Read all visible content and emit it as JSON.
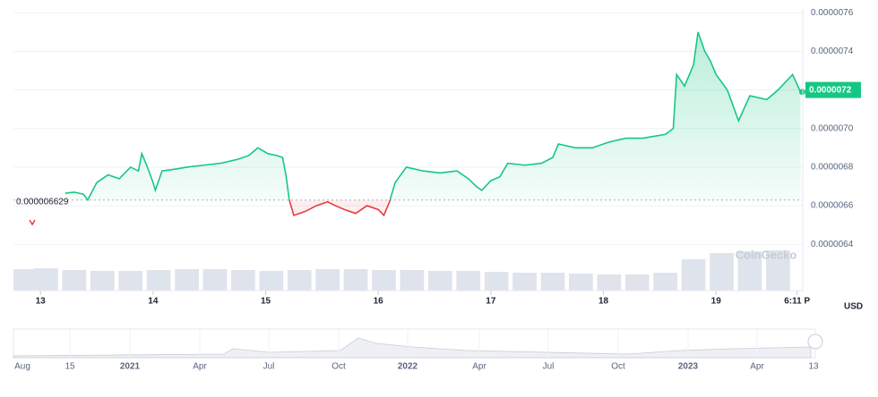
{
  "chart_data": {
    "type": "line",
    "x": [
      13.22,
      13.3,
      13.38,
      13.42,
      13.5,
      13.6,
      13.7,
      13.8,
      13.87,
      13.9,
      13.95,
      14.0,
      14.02,
      14.08,
      14.2,
      14.3,
      14.45,
      14.6,
      14.75,
      14.85,
      14.93,
      15.02,
      15.1,
      15.15,
      15.18,
      15.21,
      15.25,
      15.35,
      15.45,
      15.55,
      15.62,
      15.7,
      15.8,
      15.9,
      16.0,
      16.05,
      16.1,
      16.15,
      16.25,
      16.4,
      16.55,
      16.7,
      16.8,
      16.87,
      16.92,
      17.0,
      17.08,
      17.15,
      17.3,
      17.45,
      17.55,
      17.6,
      17.75,
      17.9,
      18.05,
      18.2,
      18.35,
      18.55,
      18.62,
      18.65,
      18.72,
      18.8,
      18.84,
      18.9,
      18.95,
      19.0,
      19.1,
      19.2,
      19.3,
      19.45,
      19.55,
      19.68,
      19.75
    ],
    "series": [
      {
        "name": "Price",
        "color": "#16c784",
        "below_color": "#ea3943",
        "values": [
          6.665e-06,
          6.67e-06,
          6.66e-06,
          6.63e-06,
          6.72e-06,
          6.76e-06,
          6.74e-06,
          6.8e-06,
          6.78e-06,
          6.87e-06,
          6.8e-06,
          6.72e-06,
          6.68e-06,
          6.78e-06,
          6.79e-06,
          6.8e-06,
          6.81e-06,
          6.82e-06,
          6.84e-06,
          6.86e-06,
          6.9e-06,
          6.87e-06,
          6.86e-06,
          6.85e-06,
          6.76e-06,
          6.63e-06,
          6.55e-06,
          6.57e-06,
          6.6e-06,
          6.62e-06,
          6.6e-06,
          6.58e-06,
          6.56e-06,
          6.6e-06,
          6.58e-06,
          6.55e-06,
          6.62e-06,
          6.72e-06,
          6.8e-06,
          6.78e-06,
          6.77e-06,
          6.78e-06,
          6.74e-06,
          6.7e-06,
          6.68e-06,
          6.73e-06,
          6.75e-06,
          6.82e-06,
          6.81e-06,
          6.82e-06,
          6.85e-06,
          6.92e-06,
          6.9e-06,
          6.9e-06,
          6.93e-06,
          6.95e-06,
          6.95e-06,
          6.97e-06,
          7e-06,
          7.28e-06,
          7.22e-06,
          7.33e-06,
          7.5e-06,
          7.4e-06,
          7.35e-06,
          7.28e-06,
          7.2e-06,
          7.04e-06,
          7.17e-06,
          7.15e-06,
          7.2e-06,
          7.28e-06,
          7.19e-06
        ]
      }
    ],
    "baseline": 6.629e-06,
    "baseline_label": "0.000006629",
    "current_price": 7.2e-06,
    "xlim": [
      12.76,
      19.77
    ],
    "xticks": [
      13,
      14,
      15,
      16,
      17,
      18,
      19,
      {
        "value": 19.72,
        "label": "6:11 P"
      }
    ],
    "ylim": [
      6.35e-06,
      7.62e-06
    ],
    "yticks": [
      6.4e-06,
      6.6e-06,
      6.8e-06,
      {
        "value": 7e-06,
        "label": "0.0000070"
      },
      7.2e-06,
      7.4e-06,
      7.6e-06
    ],
    "grid": true,
    "currency": "USD",
    "watermark": "CoinGecko",
    "volume": {
      "x": [
        12.8,
        13.05,
        13.3,
        13.55,
        13.8,
        14.05,
        14.3,
        14.55,
        14.8,
        15.05,
        15.3,
        15.55,
        15.8,
        16.05,
        16.3,
        16.55,
        16.8,
        17.05,
        17.3,
        17.55,
        17.8,
        18.05,
        18.3,
        18.55,
        18.8,
        19.05,
        19.3,
        19.55
      ],
      "values": [
        24,
        25,
        23,
        22,
        22,
        23,
        24,
        24,
        23,
        22,
        23,
        24,
        24,
        23,
        23,
        22,
        22,
        21,
        20,
        20,
        19,
        18,
        18,
        20,
        35,
        42,
        44,
        45
      ],
      "ylim": [
        0,
        60
      ],
      "color": "#dfe3ec"
    },
    "navigator_labels": [
      "Aug",
      "15",
      "2021",
      "Apr",
      "Jul",
      "Oct",
      "2022",
      "Apr",
      "Jul",
      "Oct",
      "2023",
      "Apr",
      "13"
    ]
  }
}
